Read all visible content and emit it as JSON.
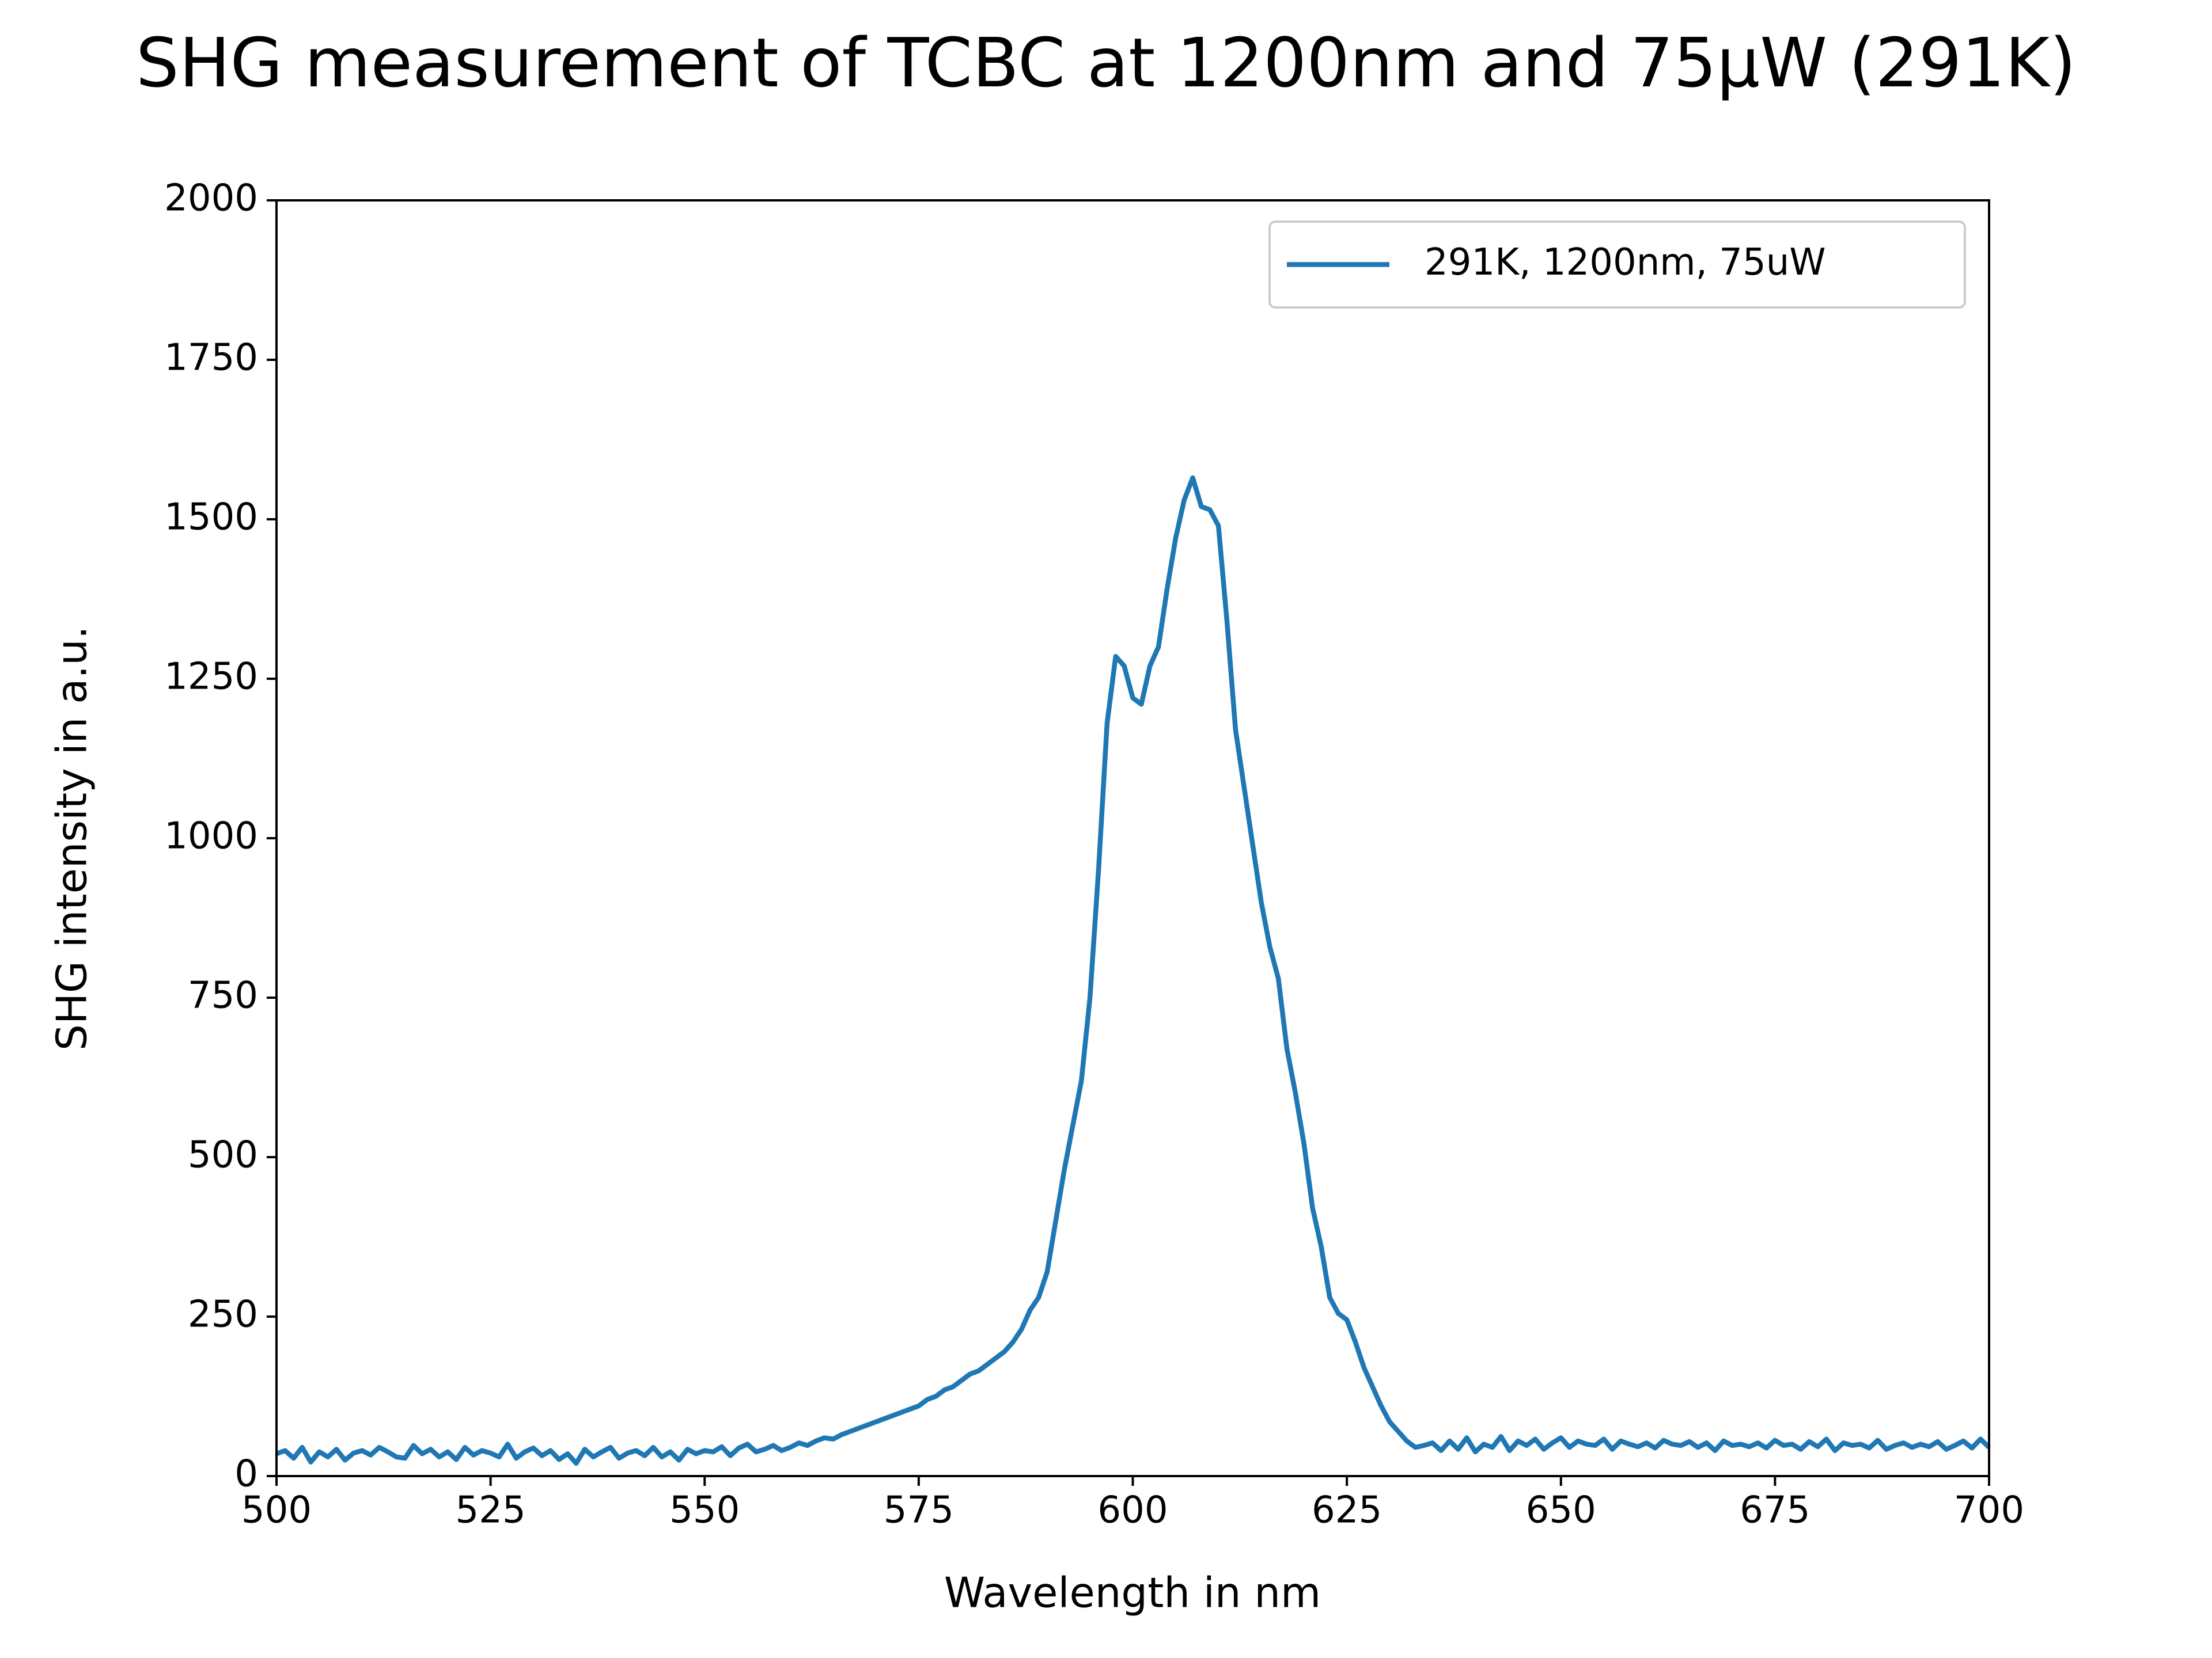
{
  "chart_data": {
    "type": "line",
    "title": "SHG measurement of TCBC at 1200nm and 75µW (291K)",
    "x_label": "Wavelength in nm",
    "y_label": "SHG intensity in a.u.",
    "xlim": [
      500,
      700
    ],
    "xticks": [
      500,
      525,
      550,
      575,
      600,
      625,
      650,
      675,
      700
    ],
    "ylim": [
      0,
      2000
    ],
    "yticks": [
      0,
      250,
      500,
      750,
      1000,
      1250,
      1500,
      1750,
      2000
    ],
    "legend": "upper right",
    "x": [
      500,
      501,
      502,
      503,
      504,
      505,
      506,
      507,
      508,
      509,
      510,
      511,
      512,
      513,
      514,
      515,
      516,
      517,
      518,
      519,
      520,
      521,
      522,
      523,
      524,
      525,
      526,
      527,
      528,
      529,
      530,
      531,
      532,
      533,
      534,
      535,
      536,
      537,
      538,
      539,
      540,
      541,
      542,
      543,
      544,
      545,
      546,
      547,
      548,
      549,
      550,
      551,
      552,
      553,
      554,
      555,
      556,
      557,
      558,
      559,
      560,
      561,
      562,
      563,
      564,
      565,
      566,
      567,
      568,
      569,
      570,
      571,
      572,
      573,
      574,
      575,
      576,
      577,
      578,
      579,
      580,
      581,
      582,
      583,
      584,
      585,
      586,
      587,
      588,
      589,
      590,
      591,
      592,
      593,
      594,
      595,
      596,
      597,
      598,
      599,
      600,
      601,
      602,
      603,
      604,
      605,
      606,
      607,
      608,
      609,
      610,
      611,
      612,
      613,
      614,
      615,
      616,
      617,
      618,
      619,
      620,
      621,
      622,
      623,
      624,
      625,
      626,
      627,
      628,
      629,
      630,
      631,
      632,
      633,
      634,
      635,
      636,
      637,
      638,
      639,
      640,
      641,
      642,
      643,
      644,
      645,
      646,
      647,
      648,
      649,
      650,
      651,
      652,
      653,
      654,
      655,
      656,
      657,
      658,
      659,
      660,
      661,
      662,
      663,
      664,
      665,
      666,
      667,
      668,
      669,
      670,
      671,
      672,
      673,
      674,
      675,
      676,
      677,
      678,
      679,
      680,
      681,
      682,
      683,
      684,
      685,
      686,
      687,
      688,
      689,
      690,
      691,
      692,
      693,
      694,
      695,
      696,
      697,
      698,
      699,
      700
    ],
    "series": [
      {
        "name": "291K, 1200nm, 75uW",
        "color": "#1f77b4",
        "values": [
          35,
          40,
          28,
          45,
          22,
          38,
          30,
          42,
          25,
          36,
          40,
          33,
          45,
          38,
          30,
          28,
          48,
          35,
          42,
          30,
          38,
          26,
          45,
          33,
          40,
          36,
          30,
          50,
          28,
          38,
          44,
          32,
          40,
          26,
          35,
          20,
          42,
          30,
          38,
          45,
          28,
          36,
          40,
          32,
          45,
          30,
          38,
          25,
          42,
          35,
          40,
          38,
          46,
          32,
          44,
          50,
          38,
          42,
          48,
          40,
          45,
          52,
          48,
          55,
          60,
          58,
          65,
          70,
          75,
          80,
          85,
          90,
          95,
          100,
          105,
          110,
          120,
          125,
          135,
          140,
          150,
          160,
          165,
          175,
          185,
          195,
          210,
          230,
          260,
          280,
          320,
          400,
          480,
          550,
          620,
          750,
          950,
          1180,
          1285,
          1270,
          1220,
          1210,
          1270,
          1300,
          1390,
          1470,
          1530,
          1565,
          1520,
          1515,
          1490,
          1340,
          1170,
          1080,
          990,
          900,
          830,
          780,
          670,
          600,
          520,
          420,
          360,
          280,
          255,
          245,
          210,
          170,
          140,
          110,
          85,
          70,
          55,
          45,
          48,
          52,
          40,
          55,
          42,
          60,
          38,
          50,
          45,
          62,
          40,
          55,
          48,
          58,
          42,
          52,
          60,
          45,
          55,
          50,
          48,
          58,
          42,
          55,
          50,
          46,
          52,
          44,
          56,
          50,
          48,
          54,
          45,
          52,
          40,
          55,
          48,
          50,
          46,
          52,
          44,
          56,
          48,
          50,
          42,
          54,
          46,
          58,
          40,
          52,
          48,
          50,
          44,
          56,
          42,
          48,
          52,
          45,
          50,
          46,
          54,
          42,
          48,
          55,
          44,
          58,
          45
        ]
      }
    ]
  }
}
